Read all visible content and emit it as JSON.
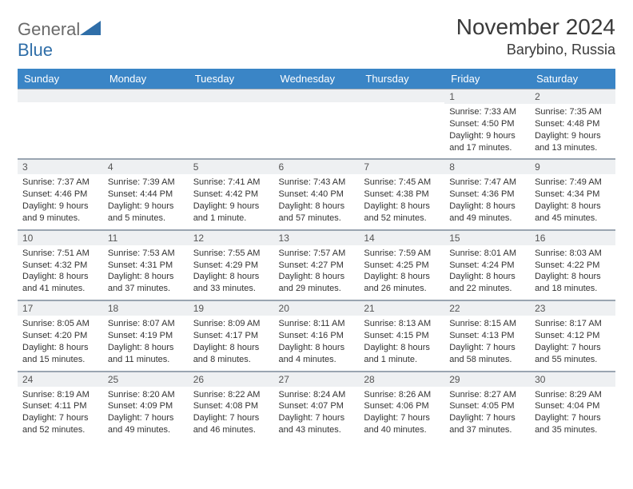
{
  "logo": {
    "text_a": "General",
    "text_b": "Blue"
  },
  "header": {
    "month": "November 2024",
    "location": "Barybino, Russia"
  },
  "colors": {
    "header_bg": "#3a85c6",
    "header_fg": "#ffffff",
    "daynum_bg": "#eef0f2",
    "border": "#9aa5b1",
    "logo_blue": "#2f6ea8",
    "logo_gray": "#6a6a6a"
  },
  "weekdays": [
    "Sunday",
    "Monday",
    "Tuesday",
    "Wednesday",
    "Thursday",
    "Friday",
    "Saturday"
  ],
  "weeks": [
    [
      {
        "empty": true
      },
      {
        "empty": true
      },
      {
        "empty": true
      },
      {
        "empty": true
      },
      {
        "empty": true
      },
      {
        "num": "1",
        "sunrise": "Sunrise: 7:33 AM",
        "sunset": "Sunset: 4:50 PM",
        "daylight": "Daylight: 9 hours and 17 minutes."
      },
      {
        "num": "2",
        "sunrise": "Sunrise: 7:35 AM",
        "sunset": "Sunset: 4:48 PM",
        "daylight": "Daylight: 9 hours and 13 minutes."
      }
    ],
    [
      {
        "num": "3",
        "sunrise": "Sunrise: 7:37 AM",
        "sunset": "Sunset: 4:46 PM",
        "daylight": "Daylight: 9 hours and 9 minutes."
      },
      {
        "num": "4",
        "sunrise": "Sunrise: 7:39 AM",
        "sunset": "Sunset: 4:44 PM",
        "daylight": "Daylight: 9 hours and 5 minutes."
      },
      {
        "num": "5",
        "sunrise": "Sunrise: 7:41 AM",
        "sunset": "Sunset: 4:42 PM",
        "daylight": "Daylight: 9 hours and 1 minute."
      },
      {
        "num": "6",
        "sunrise": "Sunrise: 7:43 AM",
        "sunset": "Sunset: 4:40 PM",
        "daylight": "Daylight: 8 hours and 57 minutes."
      },
      {
        "num": "7",
        "sunrise": "Sunrise: 7:45 AM",
        "sunset": "Sunset: 4:38 PM",
        "daylight": "Daylight: 8 hours and 52 minutes."
      },
      {
        "num": "8",
        "sunrise": "Sunrise: 7:47 AM",
        "sunset": "Sunset: 4:36 PM",
        "daylight": "Daylight: 8 hours and 49 minutes."
      },
      {
        "num": "9",
        "sunrise": "Sunrise: 7:49 AM",
        "sunset": "Sunset: 4:34 PM",
        "daylight": "Daylight: 8 hours and 45 minutes."
      }
    ],
    [
      {
        "num": "10",
        "sunrise": "Sunrise: 7:51 AM",
        "sunset": "Sunset: 4:32 PM",
        "daylight": "Daylight: 8 hours and 41 minutes."
      },
      {
        "num": "11",
        "sunrise": "Sunrise: 7:53 AM",
        "sunset": "Sunset: 4:31 PM",
        "daylight": "Daylight: 8 hours and 37 minutes."
      },
      {
        "num": "12",
        "sunrise": "Sunrise: 7:55 AM",
        "sunset": "Sunset: 4:29 PM",
        "daylight": "Daylight: 8 hours and 33 minutes."
      },
      {
        "num": "13",
        "sunrise": "Sunrise: 7:57 AM",
        "sunset": "Sunset: 4:27 PM",
        "daylight": "Daylight: 8 hours and 29 minutes."
      },
      {
        "num": "14",
        "sunrise": "Sunrise: 7:59 AM",
        "sunset": "Sunset: 4:25 PM",
        "daylight": "Daylight: 8 hours and 26 minutes."
      },
      {
        "num": "15",
        "sunrise": "Sunrise: 8:01 AM",
        "sunset": "Sunset: 4:24 PM",
        "daylight": "Daylight: 8 hours and 22 minutes."
      },
      {
        "num": "16",
        "sunrise": "Sunrise: 8:03 AM",
        "sunset": "Sunset: 4:22 PM",
        "daylight": "Daylight: 8 hours and 18 minutes."
      }
    ],
    [
      {
        "num": "17",
        "sunrise": "Sunrise: 8:05 AM",
        "sunset": "Sunset: 4:20 PM",
        "daylight": "Daylight: 8 hours and 15 minutes."
      },
      {
        "num": "18",
        "sunrise": "Sunrise: 8:07 AM",
        "sunset": "Sunset: 4:19 PM",
        "daylight": "Daylight: 8 hours and 11 minutes."
      },
      {
        "num": "19",
        "sunrise": "Sunrise: 8:09 AM",
        "sunset": "Sunset: 4:17 PM",
        "daylight": "Daylight: 8 hours and 8 minutes."
      },
      {
        "num": "20",
        "sunrise": "Sunrise: 8:11 AM",
        "sunset": "Sunset: 4:16 PM",
        "daylight": "Daylight: 8 hours and 4 minutes."
      },
      {
        "num": "21",
        "sunrise": "Sunrise: 8:13 AM",
        "sunset": "Sunset: 4:15 PM",
        "daylight": "Daylight: 8 hours and 1 minute."
      },
      {
        "num": "22",
        "sunrise": "Sunrise: 8:15 AM",
        "sunset": "Sunset: 4:13 PM",
        "daylight": "Daylight: 7 hours and 58 minutes."
      },
      {
        "num": "23",
        "sunrise": "Sunrise: 8:17 AM",
        "sunset": "Sunset: 4:12 PM",
        "daylight": "Daylight: 7 hours and 55 minutes."
      }
    ],
    [
      {
        "num": "24",
        "sunrise": "Sunrise: 8:19 AM",
        "sunset": "Sunset: 4:11 PM",
        "daylight": "Daylight: 7 hours and 52 minutes."
      },
      {
        "num": "25",
        "sunrise": "Sunrise: 8:20 AM",
        "sunset": "Sunset: 4:09 PM",
        "daylight": "Daylight: 7 hours and 49 minutes."
      },
      {
        "num": "26",
        "sunrise": "Sunrise: 8:22 AM",
        "sunset": "Sunset: 4:08 PM",
        "daylight": "Daylight: 7 hours and 46 minutes."
      },
      {
        "num": "27",
        "sunrise": "Sunrise: 8:24 AM",
        "sunset": "Sunset: 4:07 PM",
        "daylight": "Daylight: 7 hours and 43 minutes."
      },
      {
        "num": "28",
        "sunrise": "Sunrise: 8:26 AM",
        "sunset": "Sunset: 4:06 PM",
        "daylight": "Daylight: 7 hours and 40 minutes."
      },
      {
        "num": "29",
        "sunrise": "Sunrise: 8:27 AM",
        "sunset": "Sunset: 4:05 PM",
        "daylight": "Daylight: 7 hours and 37 minutes."
      },
      {
        "num": "30",
        "sunrise": "Sunrise: 8:29 AM",
        "sunset": "Sunset: 4:04 PM",
        "daylight": "Daylight: 7 hours and 35 minutes."
      }
    ]
  ]
}
